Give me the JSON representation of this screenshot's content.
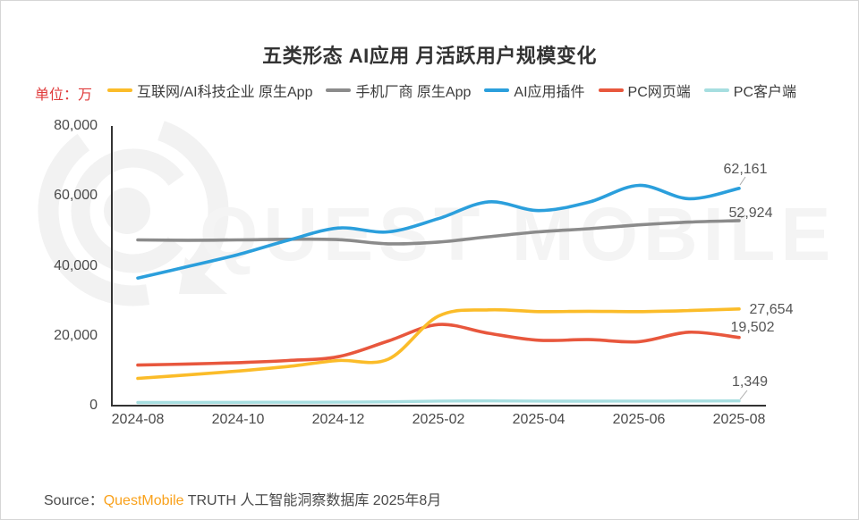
{
  "title": "五类形态 AI应用 月活跃用户规模变化",
  "unit_label": "单位：万",
  "watermark": "QUEST MOBILE",
  "legend": [
    {
      "label": "互联网/AI科技企业 原生App",
      "color": "#FBBC29"
    },
    {
      "label": "手机厂商 原生App",
      "color": "#8B8B8B"
    },
    {
      "label": "AI应用插件",
      "color": "#2B9FDC"
    },
    {
      "label": "PC网页端",
      "color": "#E8573D"
    },
    {
      "label": "PC客户端",
      "color": "#A6DEE0"
    }
  ],
  "source": {
    "prefix": "Source：",
    "brand": "QuestMobile",
    "suffix": " TRUTH 人工智能洞察数据库 2025年8月",
    "brand_color": "#F9A11B"
  },
  "chart_data": {
    "type": "line",
    "title": "五类形态 AI应用 月活跃用户规模变化",
    "unit": "万",
    "x": [
      "2024-08",
      "2024-09",
      "2024-10",
      "2024-11",
      "2024-12",
      "2025-01",
      "2025-02",
      "2025-03",
      "2025-04",
      "2025-05",
      "2025-06",
      "2025-07",
      "2025-08"
    ],
    "x_tick_labels": [
      "2024-08",
      "2024-10",
      "2024-12",
      "2025-02",
      "2025-04",
      "2025-06",
      "2025-08"
    ],
    "ylim": [
      0,
      80000
    ],
    "y_ticks": [
      0,
      20000,
      40000,
      60000,
      80000
    ],
    "y_tick_labels": [
      "0",
      "20,000",
      "40,000",
      "60,000",
      "80,000"
    ],
    "grid": false,
    "legend_position": "top",
    "series": [
      {
        "name": "互联网/AI科技企业 原生App",
        "color": "#FBBC29",
        "values": [
          7800,
          8800,
          9900,
          11200,
          12900,
          13300,
          25600,
          27400,
          26900,
          27000,
          26900,
          27200,
          27654
        ],
        "end_label": "27,654"
      },
      {
        "name": "手机厂商 原生App",
        "color": "#8B8B8B",
        "values": [
          47400,
          47300,
          47400,
          47600,
          47500,
          46300,
          46800,
          48300,
          49700,
          50600,
          51700,
          52500,
          52924
        ],
        "end_label": "52,924"
      },
      {
        "name": "AI应用插件",
        "color": "#2B9FDC",
        "values": [
          36500,
          39800,
          43200,
          47300,
          50800,
          49700,
          53500,
          58300,
          55800,
          58200,
          63000,
          59200,
          62161
        ],
        "end_label": "62,161"
      },
      {
        "name": "PC网页端",
        "color": "#E8573D",
        "values": [
          11600,
          11900,
          12300,
          12900,
          14000,
          18500,
          23200,
          20700,
          18700,
          18900,
          18300,
          21000,
          19502
        ],
        "end_label": "19,502"
      },
      {
        "name": "PC客户端",
        "color": "#A6DEE0",
        "values": [
          900,
          920,
          950,
          980,
          1000,
          1100,
          1300,
          1350,
          1300,
          1280,
          1300,
          1320,
          1349
        ],
        "end_label": "1,349"
      }
    ]
  }
}
